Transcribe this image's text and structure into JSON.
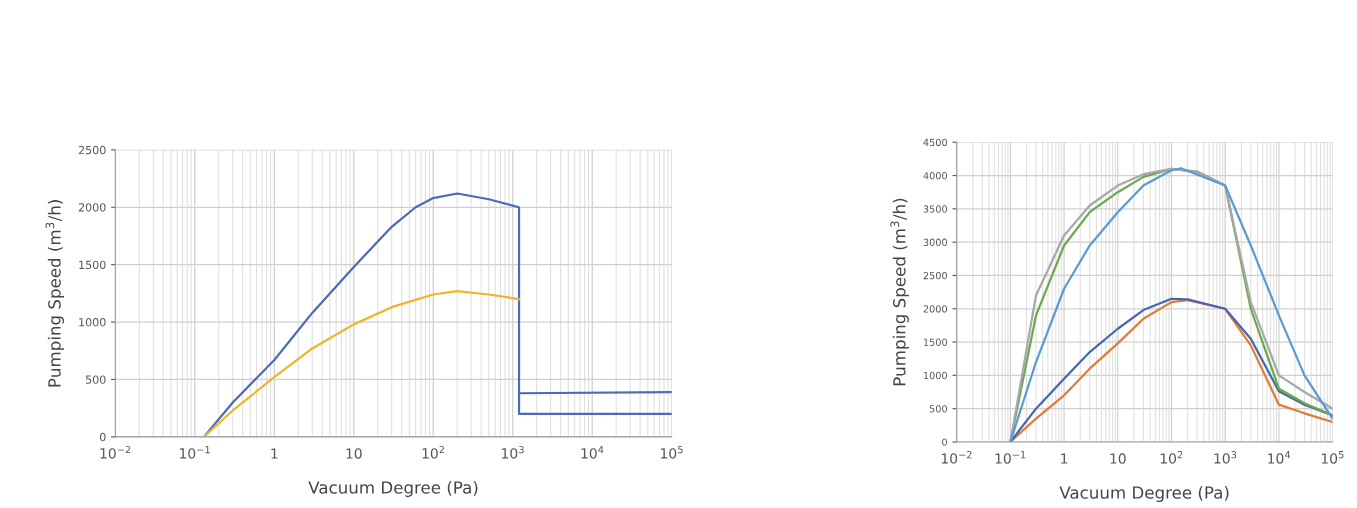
{
  "chart_data": [
    {
      "type": "line",
      "xlabel": "Vacuum Degree (Pa)",
      "ylabel": "Pumping Speed (m$^{3}$/h)",
      "log": "x",
      "grid": true,
      "xlim": [
        0.01,
        100000
      ],
      "ylim": [
        0,
        2500
      ],
      "xticks": [
        {
          "value": 0.01,
          "label": "10$^{−2}$"
        },
        {
          "value": 0.1,
          "label": "10$^{−1}$"
        },
        1,
        10,
        {
          "value": 100,
          "label": "10$^{2}$"
        },
        {
          "value": 1000,
          "label": "10$^{3}$"
        },
        {
          "value": 10000,
          "label": "10$^{4}$"
        },
        {
          "value": 100000,
          "label": "10$^{5}$"
        }
      ],
      "yticks": [
        0,
        500,
        1000,
        1500,
        2000,
        2500
      ],
      "series": [
        {
          "color": "#4a6bb5",
          "x": [
            0.13,
            0.3,
            1,
            3,
            10,
            30,
            60,
            100,
            200,
            500,
            1200,
            1200,
            100000
          ],
          "values": [
            0,
            300,
            670,
            1080,
            1480,
            1830,
            2000,
            2080,
            2120,
            2070,
            2000,
            200,
            200
          ]
        },
        {
          "color": "#4a6bb5",
          "x": [
            1200,
            100000
          ],
          "values": [
            380,
            390
          ]
        },
        {
          "color": "#f0b429",
          "x": [
            0.13,
            0.3,
            1,
            3,
            10,
            30,
            100,
            200,
            500,
            1200
          ],
          "values": [
            0,
            230,
            520,
            770,
            980,
            1130,
            1240,
            1270,
            1240,
            1200
          ]
        }
      ]
    },
    {
      "type": "line",
      "xlabel": "Vacuum Degree (Pa)",
      "ylabel": "Pumping Speed (m$^{3}$/h)",
      "log": "x",
      "grid": true,
      "xlim": [
        0.01,
        100000
      ],
      "ylim": [
        0,
        4500
      ],
      "xticks": [
        {
          "value": 0.01,
          "label": "10$^{−2}$"
        },
        {
          "value": 0.1,
          "label": "10$^{−1}$"
        },
        1,
        10,
        {
          "value": 100,
          "label": "10$^{2}$"
        },
        {
          "value": 1000,
          "label": "10$^{3}$"
        },
        {
          "value": 10000,
          "label": "10$^{4}$"
        },
        {
          "value": 100000,
          "label": "10$^{5}$"
        }
      ],
      "yticks": [
        0,
        500,
        1000,
        1500,
        2000,
        2500,
        3000,
        3500,
        4000,
        4500
      ],
      "series": [
        {
          "color": "#e07b39",
          "x": [
            0.1,
            0.3,
            1,
            3,
            10,
            30,
            100,
            200,
            1000,
            3000,
            10000,
            30000,
            100000
          ],
          "values": [
            0,
            350,
            700,
            1100,
            1480,
            1850,
            2100,
            2130,
            2000,
            1450,
            560,
            430,
            300
          ]
        },
        {
          "color": "#4468b0",
          "x": [
            0.1,
            0.3,
            1,
            3,
            10,
            30,
            100,
            200,
            1000,
            3000,
            10000,
            30000,
            100000
          ],
          "values": [
            0,
            500,
            950,
            1350,
            1700,
            1980,
            2150,
            2140,
            2000,
            1550,
            760,
            560,
            400
          ]
        },
        {
          "color": "#6aaa4f",
          "x": [
            0.1,
            0.3,
            1,
            3,
            10,
            30,
            100,
            300,
            1000,
            3000,
            10000,
            30000,
            100000
          ],
          "values": [
            0,
            1900,
            2950,
            3450,
            3750,
            3980,
            4100,
            4060,
            3850,
            2000,
            800,
            580,
            400
          ]
        },
        {
          "color": "#a8a8a8",
          "x": [
            0.1,
            0.3,
            1,
            3,
            10,
            30,
            100,
            300,
            1000,
            3000,
            10000,
            30000,
            100000
          ],
          "values": [
            0,
            2200,
            3100,
            3550,
            3850,
            4020,
            4100,
            4050,
            3850,
            2100,
            1000,
            750,
            500
          ]
        },
        {
          "color": "#5b9bd5",
          "x": [
            0.1,
            0.3,
            1,
            3,
            10,
            30,
            100,
            150,
            1000,
            3000,
            10000,
            30000,
            100000
          ],
          "values": [
            0,
            1200,
            2300,
            2950,
            3450,
            3850,
            4080,
            4110,
            3850,
            2950,
            1900,
            1000,
            350
          ]
        }
      ]
    }
  ]
}
